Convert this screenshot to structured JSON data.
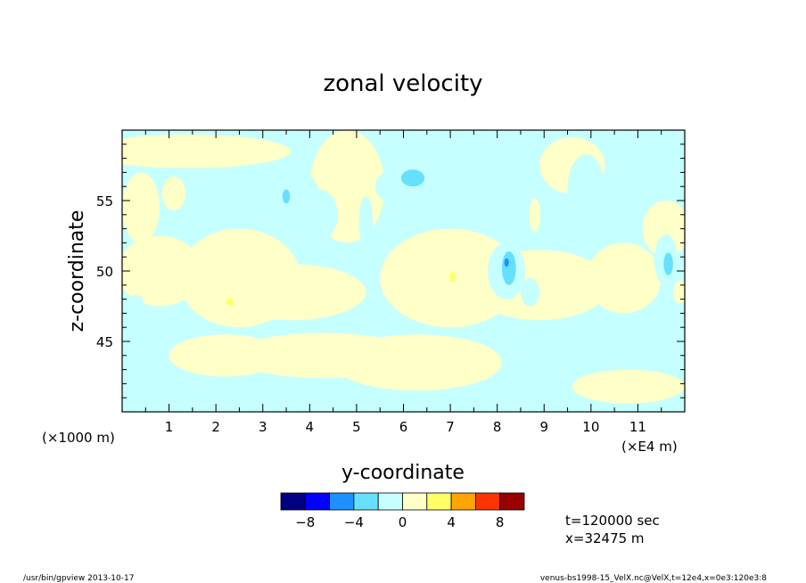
{
  "chart_data": {
    "type": "heatmap",
    "title": "zonal velocity",
    "xlabel": "y-coordinate",
    "ylabel": "z-coordinate",
    "x_unit_left": "(×1000 m)",
    "x_unit_right": "(×E4 m)",
    "xlim": [
      0,
      12
    ],
    "ylim": [
      40,
      60
    ],
    "x_ticks": [
      "1",
      "2",
      "3",
      "4",
      "5",
      "6",
      "7",
      "8",
      "9",
      "10",
      "11"
    ],
    "x_tick_values": [
      1,
      2,
      3,
      4,
      5,
      6,
      7,
      8,
      9,
      10,
      11
    ],
    "y_ticks": [
      "45",
      "50",
      "55"
    ],
    "y_tick_values": [
      45,
      50,
      55
    ],
    "colorbar": {
      "levels": [
        -10,
        -8,
        -6,
        -4,
        -2,
        0,
        2,
        4,
        6,
        8,
        10
      ],
      "colors": [
        "#000080",
        "#0000ff",
        "#1e90ff",
        "#66e0ff",
        "#c6ffff",
        "#ffffc8",
        "#ffff66",
        "#ffa500",
        "#ff3300",
        "#990000"
      ],
      "tick_labels": [
        "−8",
        "−4",
        "0",
        "4",
        "8"
      ],
      "tick_values": [
        -8,
        -4,
        0,
        4,
        8
      ]
    },
    "background_color": "#c6ffff",
    "features": [
      {
        "level": 0,
        "cx": 0.4,
        "cy": 54.5,
        "rx": 0.4,
        "ry": 2.5
      },
      {
        "level": 0,
        "cx": 1.4,
        "cy": 58.5,
        "rx": 2.2,
        "ry": 1.2
      },
      {
        "level": 0,
        "cx": 0.8,
        "cy": 50.0,
        "rx": 0.9,
        "ry": 2.5
      },
      {
        "level": 0,
        "cx": 2.5,
        "cy": 49.5,
        "rx": 1.3,
        "ry": 3.5
      },
      {
        "level": 0,
        "cx": 3.6,
        "cy": 48.5,
        "rx": 1.6,
        "ry": 2.0
      },
      {
        "level": 0,
        "cx": 4.8,
        "cy": 56.0,
        "rx": 0.8,
        "ry": 4.0
      },
      {
        "level": 0,
        "cx": 4.3,
        "cy": 44.0,
        "rx": 2.0,
        "ry": 1.6
      },
      {
        "level": 0,
        "cx": 2.2,
        "cy": 44.0,
        "rx": 1.2,
        "ry": 1.5
      },
      {
        "level": 0,
        "cx": 7.0,
        "cy": 49.5,
        "rx": 1.5,
        "ry": 3.5
      },
      {
        "level": 0,
        "cx": 6.3,
        "cy": 43.5,
        "rx": 1.8,
        "ry": 2.0
      },
      {
        "level": 0,
        "cx": 8.9,
        "cy": 49.0,
        "rx": 1.5,
        "ry": 2.5
      },
      {
        "level": 0,
        "cx": 10.7,
        "cy": 49.5,
        "rx": 0.8,
        "ry": 2.5
      },
      {
        "level": 0,
        "cx": 10.8,
        "cy": 41.8,
        "rx": 1.2,
        "ry": 1.2
      },
      {
        "level": 0,
        "cx": 9.6,
        "cy": 57.5,
        "rx": 0.7,
        "ry": 2.0
      },
      {
        "level": 0,
        "cx": 11.6,
        "cy": 53.0,
        "rx": 0.5,
        "ry": 2.0
      },
      {
        "level": 1,
        "cx": 0.4,
        "cy": 54.8,
        "rx": 0.35,
        "ry": 1.8
      },
      {
        "level": 1,
        "cx": 1.1,
        "cy": 55.5,
        "rx": 0.25,
        "ry": 1.2
      },
      {
        "level": 1,
        "cx": 2.4,
        "cy": 48.5,
        "rx": 0.5,
        "ry": 0.9
      },
      {
        "level": 1,
        "cx": 3.5,
        "cy": 48.5,
        "rx": 0.3,
        "ry": 0.7
      },
      {
        "level": 1,
        "cx": 7.1,
        "cy": 48.8,
        "rx": 0.3,
        "ry": 1.8
      },
      {
        "level": 1,
        "cx": 6.7,
        "cy": 48.0,
        "rx": 0.4,
        "ry": 0.6
      },
      {
        "level": 1,
        "cx": 8.8,
        "cy": 54.0,
        "rx": 0.12,
        "ry": 1.2
      },
      {
        "level": 1,
        "cx": 11.9,
        "cy": 48.5,
        "rx": 0.15,
        "ry": 0.8
      },
      {
        "level": 2,
        "cx": 2.3,
        "cy": 47.8,
        "rx": 0.08,
        "ry": 0.25
      },
      {
        "level": 2,
        "cx": 7.05,
        "cy": 49.6,
        "rx": 0.06,
        "ry": 0.4
      },
      {
        "level": -1,
        "cx": 3.2,
        "cy": 55.5,
        "rx": 1.0,
        "ry": 2.2
      },
      {
        "level": -1,
        "cx": 1.9,
        "cy": 55.0,
        "rx": 0.15,
        "ry": 1.3
      },
      {
        "level": -1,
        "cx": 4.2,
        "cy": 54.0,
        "rx": 0.4,
        "ry": 1.8
      },
      {
        "level": -1,
        "cx": 6.0,
        "cy": 56.0,
        "rx": 0.6,
        "ry": 1.4
      },
      {
        "level": -1,
        "cx": 7.6,
        "cy": 56.0,
        "rx": 0.5,
        "ry": 2.5
      },
      {
        "level": -1,
        "cx": 8.2,
        "cy": 50.0,
        "rx": 0.4,
        "ry": 2.0
      },
      {
        "level": -1,
        "cx": 8.7,
        "cy": 48.5,
        "rx": 0.2,
        "ry": 1.0
      },
      {
        "level": -1,
        "cx": 9.9,
        "cy": 55.8,
        "rx": 0.4,
        "ry": 2.5
      },
      {
        "level": -1,
        "cx": 11.6,
        "cy": 50.8,
        "rx": 0.25,
        "ry": 1.8
      },
      {
        "level": -1,
        "cx": 0.3,
        "cy": 47.8,
        "rx": 0.15,
        "ry": 0.5
      },
      {
        "level": -1,
        "cx": 5.2,
        "cy": 53.5,
        "rx": 0.15,
        "ry": 1.8
      },
      {
        "level": -2,
        "cx": 6.2,
        "cy": 56.6,
        "rx": 0.25,
        "ry": 0.6
      },
      {
        "level": -2,
        "cx": 8.25,
        "cy": 50.2,
        "rx": 0.15,
        "ry": 1.2
      },
      {
        "level": -2,
        "cx": 11.65,
        "cy": 50.5,
        "rx": 0.1,
        "ry": 0.8
      },
      {
        "level": -2,
        "cx": 3.5,
        "cy": 55.3,
        "rx": 0.08,
        "ry": 0.5
      },
      {
        "level": -3,
        "cx": 8.2,
        "cy": 50.6,
        "rx": 0.05,
        "ry": 0.3
      }
    ]
  },
  "annotations": {
    "time": "t=120000 sec",
    "position": "x=32475 m"
  },
  "footer": {
    "left": "/usr/bin/gpview   2013-10-17",
    "right": "venus-bs1998-15_VelX.nc@VelX,t=12e4,x=0e3:120e3:8"
  }
}
